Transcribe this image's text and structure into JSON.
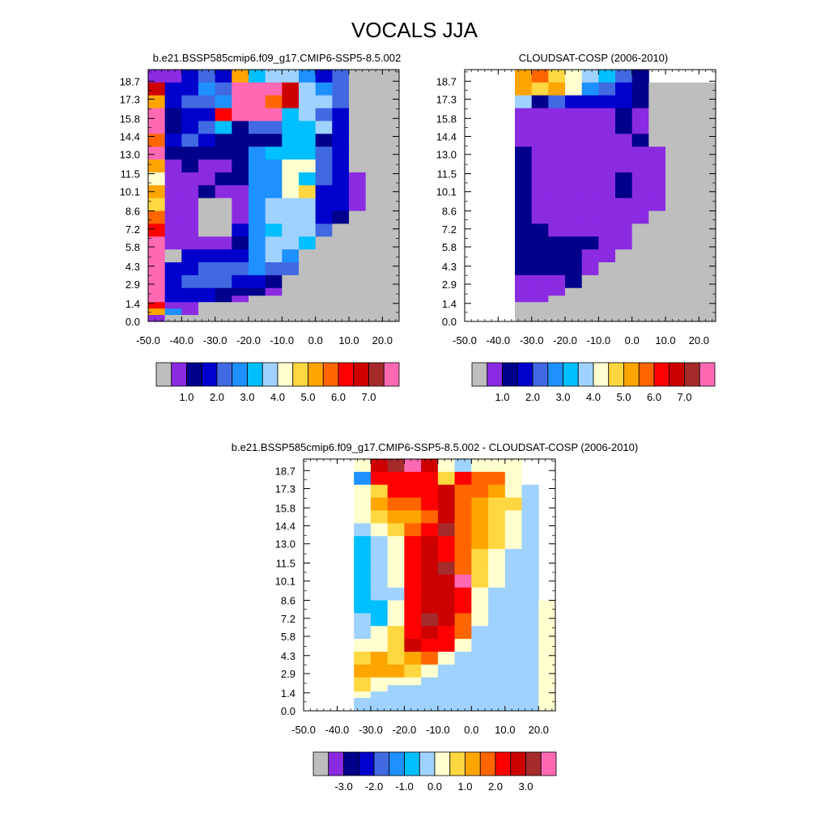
{
  "figure_title": "VOCALS JJA",
  "palette": {
    "abs": [
      "#bebebe",
      "#8a2be2",
      "#00008b",
      "#0000cd",
      "#4169e1",
      "#1e90ff",
      "#00bfff",
      "#a0d2ff",
      "#ffffd0",
      "#ffd740",
      "#ffa500",
      "#ff6600",
      "#ff0000",
      "#cd0000",
      "#a52a2a",
      "#ff69b4"
    ],
    "diff": [
      "#bebebe",
      "#8a2be2",
      "#00008b",
      "#0000cd",
      "#4169e1",
      "#1e90ff",
      "#00bfff",
      "#a0d2ff",
      "#ffffd0",
      "#ffd740",
      "#ffa500",
      "#ff6600",
      "#ff0000",
      "#cd0000",
      "#a52a2a",
      "#ff69b4"
    ]
  },
  "chart_data": [
    {
      "type": "heatmap",
      "title": "b.e21.BSSP585cmip6.f09_g17.CMIP6-SSP5-8.5.002",
      "x_ticks": [
        "-50.0",
        "-40.0",
        "-30.0",
        "-20.0",
        "-10.0",
        "0.0",
        "10.0",
        "20.0"
      ],
      "y_ticks": [
        "0.0",
        "1.4",
        "2.9",
        "4.3",
        "5.8",
        "7.2",
        "8.6",
        "10.1",
        "11.5",
        "13.0",
        "14.4",
        "15.8",
        "17.3",
        "18.7"
      ],
      "x_edges": [
        -50,
        -45,
        -40,
        -35,
        -30,
        -25,
        -20,
        -15,
        -10,
        -5,
        0,
        5,
        10,
        15,
        20,
        25
      ],
      "y_edges": [
        0,
        0.5,
        1,
        1.5,
        2,
        2.6,
        3.6,
        4.6,
        5.6,
        6.6,
        7.6,
        8.6,
        9.6,
        10.6,
        11.6,
        12.6,
        13.6,
        14.6,
        15.6,
        16.6,
        17.6,
        18.6,
        19.6
      ],
      "colorbar_labels": [
        "1.0",
        "2.0",
        "3.0",
        "4.0",
        "5.0",
        "6.0",
        "7.0"
      ],
      "rows": [
        [
          1,
          1,
          3,
          4,
          3,
          10,
          6,
          7,
          7,
          5,
          3,
          4,
          0,
          0,
          0
        ],
        [
          13,
          3,
          3,
          5,
          4,
          15,
          15,
          15,
          13,
          7,
          5,
          4,
          0,
          0,
          0
        ],
        [
          10,
          3,
          4,
          4,
          5,
          15,
          15,
          11,
          13,
          7,
          7,
          4,
          0,
          0,
          0
        ],
        [
          15,
          2,
          3,
          3,
          12,
          15,
          15,
          15,
          6,
          7,
          4,
          3,
          0,
          0,
          0
        ],
        [
          15,
          2,
          3,
          4,
          6,
          2,
          4,
          4,
          6,
          6,
          7,
          3,
          0,
          0,
          0
        ],
        [
          11,
          3,
          4,
          3,
          2,
          2,
          2,
          2,
          6,
          6,
          2,
          3,
          0,
          0,
          0
        ],
        [
          15,
          2,
          2,
          2,
          2,
          2,
          5,
          6,
          6,
          6,
          4,
          3,
          0,
          0,
          0
        ],
        [
          10,
          1,
          2,
          1,
          1,
          2,
          5,
          5,
          8,
          8,
          4,
          3,
          0,
          0,
          0
        ],
        [
          8,
          1,
          1,
          1,
          2,
          2,
          5,
          5,
          8,
          6,
          4,
          3,
          1,
          0,
          0
        ],
        [
          10,
          1,
          1,
          2,
          1,
          1,
          5,
          5,
          8,
          9,
          3,
          3,
          1,
          0,
          0
        ],
        [
          9,
          1,
          1,
          0,
          0,
          1,
          5,
          7,
          7,
          7,
          3,
          3,
          1,
          0,
          0
        ],
        [
          11,
          1,
          1,
          0,
          0,
          1,
          5,
          7,
          7,
          7,
          3,
          2,
          0,
          0,
          0
        ],
        [
          12,
          1,
          1,
          0,
          0,
          3,
          5,
          6,
          7,
          7,
          4,
          0,
          0,
          0,
          0
        ],
        [
          15,
          1,
          1,
          1,
          1,
          2,
          5,
          7,
          7,
          6,
          0,
          0,
          0,
          0,
          0
        ],
        [
          15,
          0,
          3,
          3,
          3,
          3,
          5,
          7,
          5,
          0,
          0,
          0,
          0,
          0,
          0
        ],
        [
          15,
          3,
          3,
          4,
          4,
          4,
          5,
          4,
          4,
          0,
          0,
          0,
          0,
          0,
          0
        ],
        [
          15,
          3,
          4,
          4,
          4,
          3,
          3,
          2,
          0,
          0,
          0,
          0,
          0,
          0,
          0
        ],
        [
          15,
          3,
          3,
          3,
          2,
          2,
          2,
          1,
          0,
          0,
          0,
          0,
          0,
          0,
          0
        ],
        [
          15,
          3,
          3,
          3,
          2,
          1,
          0,
          0,
          0,
          0,
          0,
          0,
          0,
          0,
          0
        ],
        [
          12,
          1,
          1,
          0,
          0,
          0,
          0,
          0,
          0,
          0,
          0,
          0,
          0,
          0,
          0
        ],
        [
          10,
          5,
          1,
          0,
          0,
          0,
          0,
          0,
          0,
          0,
          0,
          0,
          0,
          0,
          0
        ],
        [
          1,
          0,
          0,
          0,
          0,
          0,
          0,
          0,
          0,
          0,
          0,
          0,
          0,
          0,
          0
        ]
      ]
    },
    {
      "type": "heatmap",
      "title": "CLOUDSAT-COSP (2006-2010)",
      "x_ticks": [
        "-50.0",
        "-40.0",
        "-30.0",
        "-20.0",
        "-10.0",
        "0.0",
        "10.0",
        "20.0"
      ],
      "y_ticks": [
        "0.0",
        "1.4",
        "2.9",
        "4.3",
        "5.8",
        "7.2",
        "8.6",
        "10.1",
        "11.5",
        "13.0",
        "14.4",
        "15.8",
        "17.3",
        "18.7"
      ],
      "x_edges": [
        -50,
        -45,
        -40,
        -35,
        -30,
        -25,
        -20,
        -15,
        -10,
        -5,
        0,
        5,
        10,
        15,
        20,
        25
      ],
      "y_edges": [
        0,
        0.5,
        1,
        1.5,
        2,
        2.6,
        3.6,
        4.6,
        5.6,
        6.6,
        7.6,
        8.6,
        9.6,
        10.6,
        11.6,
        12.6,
        13.6,
        14.6,
        15.6,
        16.6,
        17.6,
        18.6,
        19.6
      ],
      "colorbar_labels": [
        "1.0",
        "2.0",
        "3.0",
        "4.0",
        "5.0",
        "6.0",
        "7.0"
      ],
      "rows": [
        [
          -1,
          -1,
          -1,
          10,
          11,
          9,
          8,
          7,
          6,
          4,
          2,
          -1,
          -1,
          -1,
          -1
        ],
        [
          -1,
          -1,
          -1,
          10,
          9,
          10,
          8,
          5,
          4,
          3,
          2,
          0,
          0,
          0,
          0
        ],
        [
          -1,
          -1,
          -1,
          7,
          2,
          4,
          3,
          3,
          3,
          3,
          2,
          0,
          0,
          0,
          0
        ],
        [
          -1,
          -1,
          -1,
          1,
          1,
          1,
          1,
          1,
          1,
          2,
          1,
          0,
          0,
          0,
          0
        ],
        [
          -1,
          -1,
          -1,
          1,
          1,
          1,
          1,
          1,
          1,
          2,
          1,
          0,
          0,
          0,
          0
        ],
        [
          -1,
          -1,
          -1,
          1,
          1,
          1,
          1,
          1,
          1,
          1,
          2,
          0,
          0,
          0,
          0
        ],
        [
          -1,
          -1,
          -1,
          2,
          1,
          1,
          1,
          1,
          1,
          1,
          1,
          1,
          0,
          0,
          0
        ],
        [
          -1,
          -1,
          -1,
          2,
          1,
          1,
          1,
          1,
          1,
          1,
          1,
          1,
          0,
          0,
          0
        ],
        [
          -1,
          -1,
          -1,
          2,
          1,
          1,
          1,
          1,
          1,
          2,
          1,
          1,
          0,
          0,
          0
        ],
        [
          -1,
          -1,
          -1,
          2,
          1,
          1,
          1,
          1,
          1,
          2,
          1,
          1,
          0,
          0,
          0
        ],
        [
          -1,
          -1,
          -1,
          2,
          1,
          1,
          1,
          1,
          1,
          1,
          1,
          1,
          0,
          0,
          0
        ],
        [
          -1,
          -1,
          -1,
          2,
          1,
          1,
          1,
          1,
          1,
          1,
          1,
          0,
          0,
          0,
          0
        ],
        [
          -1,
          -1,
          -1,
          2,
          2,
          1,
          1,
          1,
          1,
          1,
          0,
          0,
          0,
          0,
          0
        ],
        [
          -1,
          -1,
          -1,
          2,
          2,
          2,
          2,
          2,
          1,
          1,
          0,
          0,
          0,
          0,
          0
        ],
        [
          -1,
          -1,
          -1,
          2,
          2,
          2,
          2,
          1,
          1,
          0,
          0,
          0,
          0,
          0,
          0
        ],
        [
          -1,
          -1,
          -1,
          2,
          2,
          2,
          2,
          1,
          0,
          0,
          0,
          0,
          0,
          0,
          0
        ],
        [
          -1,
          -1,
          -1,
          1,
          1,
          1,
          2,
          0,
          0,
          0,
          0,
          0,
          0,
          0,
          0
        ],
        [
          -1,
          -1,
          -1,
          1,
          1,
          1,
          0,
          0,
          0,
          0,
          0,
          0,
          0,
          0,
          0
        ],
        [
          -1,
          -1,
          -1,
          1,
          1,
          0,
          0,
          0,
          0,
          0,
          0,
          0,
          0,
          0,
          0
        ],
        [
          -1,
          -1,
          -1,
          0,
          0,
          0,
          0,
          0,
          0,
          0,
          0,
          0,
          0,
          0,
          0
        ],
        [
          -1,
          -1,
          -1,
          0,
          0,
          0,
          0,
          0,
          0,
          0,
          0,
          0,
          0,
          0,
          0
        ],
        [
          -1,
          -1,
          -1,
          0,
          0,
          0,
          0,
          0,
          0,
          0,
          0,
          0,
          0,
          0,
          0
        ]
      ]
    },
    {
      "type": "heatmap",
      "title": "b.e21.BSSP585cmip6.f09_g17.CMIP6-SSP5-8.5.002 - CLOUDSAT-COSP (2006-2010)",
      "x_ticks": [
        "-50.0",
        "-40.0",
        "-30.0",
        "-20.0",
        "-10.0",
        "0.0",
        "10.0",
        "20.0"
      ],
      "y_ticks": [
        "0.0",
        "1.4",
        "2.9",
        "4.3",
        "5.8",
        "7.2",
        "8.6",
        "10.1",
        "11.5",
        "13.0",
        "14.4",
        "15.8",
        "17.3",
        "18.7"
      ],
      "x_edges": [
        -50,
        -45,
        -40,
        -35,
        -30,
        -25,
        -20,
        -15,
        -10,
        -5,
        0,
        5,
        10,
        15,
        20,
        25
      ],
      "y_edges": [
        0,
        0.5,
        1,
        1.5,
        2,
        2.6,
        3.6,
        4.6,
        5.6,
        6.6,
        7.6,
        8.6,
        9.6,
        10.6,
        11.6,
        12.6,
        13.6,
        14.6,
        15.6,
        16.6,
        17.6,
        18.6,
        19.6
      ],
      "colorbar_labels": [
        "-3.0",
        "-2.0",
        "-1.0",
        "0.0",
        "1.0",
        "2.0",
        "3.0"
      ],
      "rows": [
        [
          -1,
          -1,
          -1,
          8,
          13,
          14,
          15,
          13,
          8,
          7,
          8,
          8,
          8,
          -1,
          -1
        ],
        [
          -1,
          -1,
          -1,
          5,
          12,
          12,
          12,
          12,
          9,
          12,
          11,
          11,
          8,
          -1,
          -1
        ],
        [
          -1,
          -1,
          -1,
          8,
          9,
          12,
          12,
          12,
          13,
          11,
          11,
          10,
          8,
          7,
          -1
        ],
        [
          -1,
          -1,
          -1,
          8,
          10,
          11,
          11,
          12,
          13,
          11,
          10,
          9,
          9,
          7,
          -1
        ],
        [
          -1,
          -1,
          -1,
          8,
          9,
          10,
          10,
          11,
          13,
          11,
          10,
          9,
          8,
          7,
          -1
        ],
        [
          -1,
          -1,
          -1,
          7,
          8,
          9,
          11,
          12,
          14,
          11,
          10,
          9,
          8,
          7,
          -1
        ],
        [
          -1,
          -1,
          -1,
          6,
          7,
          8,
          12,
          13,
          12,
          11,
          10,
          9,
          8,
          7,
          -1
        ],
        [
          -1,
          -1,
          -1,
          6,
          7,
          8,
          12,
          13,
          12,
          11,
          9,
          8,
          7,
          7,
          -1
        ],
        [
          -1,
          -1,
          -1,
          6,
          7,
          8,
          12,
          13,
          14,
          11,
          9,
          8,
          7,
          7,
          -1
        ],
        [
          -1,
          -1,
          -1,
          6,
          7,
          8,
          12,
          13,
          13,
          15,
          9,
          8,
          7,
          7,
          -1
        ],
        [
          -1,
          -1,
          -1,
          6,
          7,
          7,
          12,
          13,
          13,
          12,
          8,
          7,
          7,
          7,
          -1
        ],
        [
          -1,
          -1,
          -1,
          6,
          6,
          8,
          12,
          13,
          13,
          12,
          8,
          7,
          7,
          7,
          8
        ],
        [
          -1,
          -1,
          -1,
          7,
          6,
          8,
          12,
          14,
          13,
          11,
          8,
          7,
          7,
          7,
          8
        ],
        [
          -1,
          -1,
          -1,
          7,
          8,
          9,
          12,
          13,
          12,
          11,
          7,
          7,
          7,
          7,
          8
        ],
        [
          -1,
          -1,
          -1,
          8,
          8,
          9,
          13,
          12,
          12,
          8,
          7,
          7,
          7,
          7,
          8
        ],
        [
          -1,
          -1,
          -1,
          9,
          10,
          9,
          10,
          11,
          8,
          7,
          7,
          7,
          7,
          7,
          8
        ],
        [
          -1,
          -1,
          -1,
          10,
          10,
          10,
          9,
          8,
          7,
          7,
          7,
          7,
          7,
          7,
          8
        ],
        [
          -1,
          -1,
          -1,
          9,
          8,
          8,
          8,
          7,
          7,
          7,
          7,
          7,
          7,
          7,
          8
        ],
        [
          -1,
          -1,
          -1,
          9,
          8,
          7,
          7,
          7,
          7,
          7,
          7,
          7,
          7,
          7,
          8
        ],
        [
          -1,
          -1,
          -1,
          8,
          7,
          7,
          7,
          7,
          7,
          7,
          7,
          7,
          7,
          7,
          8
        ],
        [
          -1,
          -1,
          -1,
          7,
          7,
          7,
          7,
          7,
          7,
          7,
          7,
          7,
          7,
          7,
          8
        ],
        [
          -1,
          -1,
          -1,
          7,
          7,
          7,
          7,
          7,
          7,
          7,
          7,
          7,
          7,
          7,
          8
        ]
      ]
    }
  ]
}
